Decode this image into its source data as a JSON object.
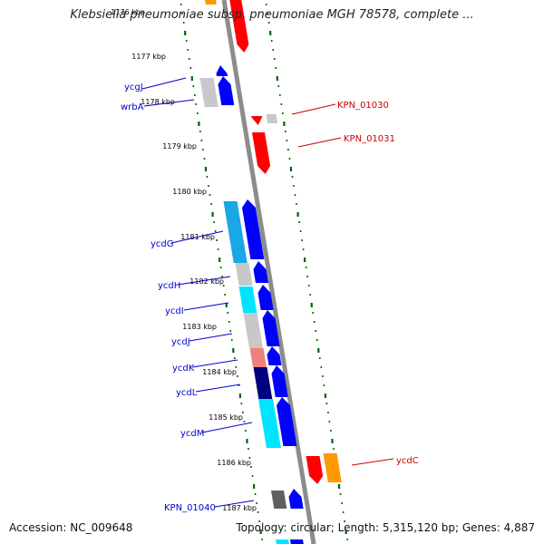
{
  "title": "Klebsiella pneumoniae subsp. pneumoniae MGH 78578, complete ...",
  "footer": {
    "accession": "Accession: NC_009648",
    "summary": "Topology: circular; Length: 5,315,120 bp; Genes: 4,887"
  },
  "ticks": [
    {
      "label": "1176 kbp"
    },
    {
      "label": "1177 kbp"
    },
    {
      "label": "1178 kbp"
    },
    {
      "label": "1179 kbp"
    },
    {
      "label": "1180 kbp"
    },
    {
      "label": "1181 kbp"
    },
    {
      "label": "1182 kbp"
    },
    {
      "label": "1183 kbp"
    },
    {
      "label": "1184 kbp"
    },
    {
      "label": "1185 kbp"
    },
    {
      "label": "1186 kbp"
    },
    {
      "label": "1187 kbp"
    }
  ],
  "genes_left": [
    {
      "label": "ycgJ",
      "color": "#0000cc"
    },
    {
      "label": "wrbA",
      "color": "#0000cc"
    },
    {
      "label": "ycdG",
      "color": "#0000cc"
    },
    {
      "label": "ycdH",
      "color": "#0000cc"
    },
    {
      "label": "ycdI",
      "color": "#0000cc"
    },
    {
      "label": "ycdJ",
      "color": "#0000cc"
    },
    {
      "label": "ycdK",
      "color": "#0000cc"
    },
    {
      "label": "ycdL",
      "color": "#0000cc"
    },
    {
      "label": "ycdM",
      "color": "#0000cc"
    },
    {
      "label": "KPN_01040",
      "color": "#0000cc"
    }
  ],
  "genes_right": [
    {
      "label": "KPN_01030",
      "color": "#cc0000"
    },
    {
      "label": "KPN_01031",
      "color": "#cc0000"
    },
    {
      "label": "ycdC",
      "color": "#cc0000"
    }
  ],
  "colors": {
    "backbone": "#8c8c8c",
    "reverse_strand": "#ff0000",
    "forward_strand": "#0000ff",
    "tick_marks": "#006600",
    "cds_cyan": "#00e5ff",
    "cds_sky": "#19a7e6",
    "cds_gray": "#c8c8c8",
    "cds_navy": "#000080",
    "cds_pink": "#f08080",
    "cds_orange": "#ff9900",
    "cds_darkgray": "#606060"
  }
}
